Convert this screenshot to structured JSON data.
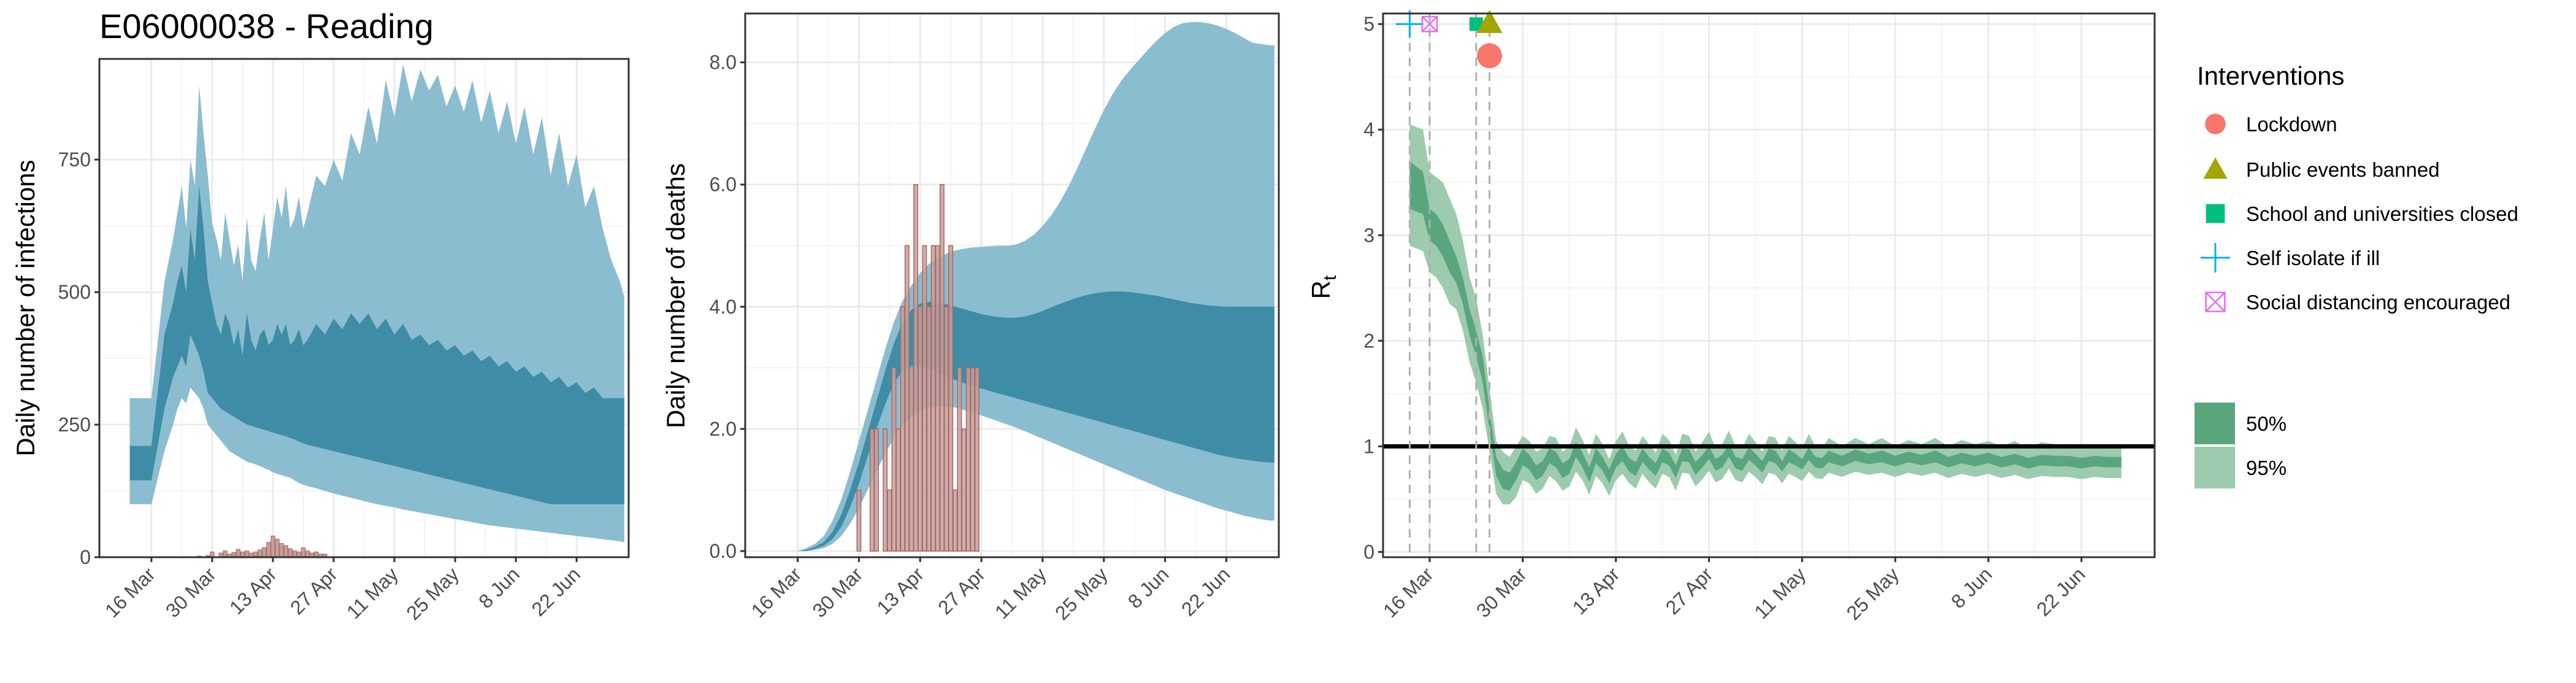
{
  "chart_data": [
    {
      "type": "area",
      "title": "E06000038 - Reading",
      "xlabel": "",
      "ylabel": "Daily number of infections",
      "x_tick_labels": [
        "16 Mar",
        "30 Mar",
        "13 Apr",
        "27 Apr",
        "11 May",
        "25 May",
        "8 Jun",
        "22 Jun"
      ],
      "y_ticks": [
        0,
        250,
        500,
        750
      ],
      "y_tick_labels": [
        "0",
        "250",
        "500",
        "750"
      ],
      "ylim": [
        0,
        940
      ],
      "x_day_range": [
        -12,
        110
      ],
      "band_days": [
        -5,
        0,
        3,
        5,
        6,
        7,
        8,
        9,
        10,
        11,
        12,
        13,
        14,
        15,
        16,
        17,
        18,
        19,
        20,
        21,
        22,
        23,
        24,
        25,
        26,
        27,
        28,
        29,
        30,
        31,
        32,
        33,
        34,
        35,
        36,
        38,
        40,
        42,
        44,
        46,
        48,
        50,
        52,
        54,
        56,
        58,
        60,
        62,
        64,
        66,
        68,
        70,
        72,
        74,
        76,
        78,
        80,
        82,
        84,
        86,
        88,
        90,
        92,
        94,
        96,
        98,
        100,
        102,
        104,
        106,
        108,
        109
      ],
      "band95_upper": [
        300,
        300,
        520,
        600,
        650,
        700,
        620,
        750,
        700,
        890,
        800,
        720,
        630,
        600,
        560,
        650,
        600,
        550,
        590,
        520,
        640,
        560,
        540,
        600,
        650,
        560,
        620,
        680,
        640,
        700,
        620,
        640,
        680,
        620,
        650,
        720,
        700,
        750,
        710,
        800,
        760,
        850,
        780,
        900,
        830,
        930,
        860,
        920,
        880,
        910,
        850,
        890,
        840,
        900,
        820,
        880,
        800,
        860,
        780,
        850,
        760,
        830,
        720,
        800,
        700,
        760,
        660,
        700,
        620,
        560,
        520,
        490
      ],
      "band95_lower": [
        100,
        100,
        200,
        250,
        280,
        300,
        290,
        320,
        310,
        300,
        280,
        250,
        240,
        230,
        220,
        210,
        200,
        195,
        190,
        185,
        180,
        178,
        175,
        172,
        168,
        165,
        160,
        157,
        155,
        152,
        150,
        145,
        140,
        137,
        134,
        130,
        125,
        120,
        116,
        112,
        108,
        104,
        100,
        97,
        94,
        90,
        87,
        84,
        81,
        78,
        75,
        72,
        69,
        66,
        63,
        60,
        58,
        56,
        54,
        52,
        50,
        48,
        46,
        44,
        42,
        40,
        38,
        36,
        34,
        32,
        30,
        28
      ],
      "band50_upper": [
        210,
        210,
        420,
        480,
        520,
        550,
        500,
        620,
        560,
        700,
        620,
        520,
        480,
        440,
        420,
        460,
        440,
        400,
        430,
        380,
        460,
        410,
        390,
        420,
        430,
        400,
        410,
        440,
        420,
        440,
        400,
        410,
        430,
        400,
        410,
        440,
        420,
        450,
        430,
        460,
        440,
        460,
        430,
        450,
        420,
        440,
        410,
        420,
        400,
        410,
        390,
        400,
        380,
        390,
        370,
        380,
        360,
        370,
        350,
        360,
        340,
        350,
        330,
        340,
        320,
        330,
        310,
        320,
        300,
        300,
        300,
        300
      ],
      "band50_lower": [
        145,
        145,
        280,
        340,
        360,
        380,
        360,
        420,
        400,
        380,
        350,
        310,
        300,
        290,
        280,
        275,
        270,
        265,
        260,
        255,
        250,
        248,
        245,
        243,
        240,
        238,
        235,
        233,
        230,
        228,
        225,
        222,
        218,
        215,
        212,
        208,
        204,
        200,
        196,
        192,
        188,
        184,
        180,
        176,
        172,
        168,
        164,
        160,
        156,
        152,
        148,
        144,
        140,
        136,
        132,
        128,
        124,
        120,
        116,
        112,
        108,
        104,
        100,
        100,
        100,
        100,
        100,
        100,
        100,
        100,
        100,
        100
      ],
      "observed_days": [
        11,
        13,
        14,
        16,
        17,
        18,
        19,
        20,
        21,
        22,
        23,
        24,
        25,
        26,
        27,
        28,
        29,
        30,
        31,
        32,
        33,
        34,
        35,
        36,
        37,
        38,
        39,
        40
      ],
      "observed_cases": [
        2,
        3,
        10,
        8,
        12,
        6,
        9,
        15,
        10,
        12,
        8,
        10,
        14,
        18,
        28,
        40,
        34,
        26,
        22,
        16,
        12,
        10,
        18,
        12,
        8,
        10,
        6,
        6
      ]
    },
    {
      "type": "area",
      "title": "",
      "xlabel": "",
      "ylabel": "Daily number of deaths",
      "x_tick_labels": [
        "16 Mar",
        "30 Mar",
        "13 Apr",
        "27 Apr",
        "11 May",
        "25 May",
        "8 Jun",
        "22 Jun"
      ],
      "y_ticks": [
        0,
        2,
        4,
        6,
        8
      ],
      "y_tick_labels": [
        "0.0",
        "2.0",
        "4.0",
        "6.0",
        "8.0"
      ],
      "ylim": [
        -0.1,
        8.8
      ],
      "x_day_range": [
        -12,
        110
      ],
      "band_days": [
        0,
        2,
        4,
        6,
        8,
        10,
        12,
        14,
        16,
        18,
        20,
        22,
        24,
        26,
        28,
        30,
        32,
        34,
        36,
        38,
        40,
        42,
        44,
        46,
        48,
        50,
        52,
        54,
        56,
        58,
        60,
        62,
        64,
        66,
        68,
        70,
        72,
        74,
        76,
        78,
        80,
        82,
        84,
        86,
        88,
        90,
        92,
        94,
        96,
        98,
        100,
        102,
        104,
        106,
        108,
        109
      ],
      "band95_upper": [
        0,
        0.05,
        0.12,
        0.25,
        0.5,
        0.85,
        1.3,
        1.8,
        2.3,
        2.8,
        3.3,
        3.75,
        4.1,
        4.35,
        4.55,
        4.7,
        4.8,
        4.87,
        4.92,
        4.95,
        4.97,
        4.98,
        4.99,
        5.0,
        5.0,
        5.02,
        5.08,
        5.18,
        5.32,
        5.5,
        5.72,
        5.98,
        6.28,
        6.6,
        6.92,
        7.22,
        7.48,
        7.7,
        7.88,
        8.04,
        8.2,
        8.35,
        8.48,
        8.58,
        8.64,
        8.66,
        8.66,
        8.64,
        8.6,
        8.55,
        8.48,
        8.4,
        8.32,
        8.3,
        8.28,
        8.28
      ],
      "band95_lower": [
        0,
        0,
        0.02,
        0.05,
        0.12,
        0.25,
        0.45,
        0.7,
        1.0,
        1.3,
        1.6,
        1.85,
        2.05,
        2.2,
        2.3,
        2.35,
        2.37,
        2.37,
        2.35,
        2.31,
        2.27,
        2.22,
        2.17,
        2.12,
        2.07,
        2.02,
        1.96,
        1.9,
        1.84,
        1.78,
        1.72,
        1.66,
        1.6,
        1.54,
        1.48,
        1.42,
        1.36,
        1.3,
        1.24,
        1.18,
        1.12,
        1.06,
        1.0,
        0.95,
        0.9,
        0.85,
        0.8,
        0.75,
        0.7,
        0.66,
        0.62,
        0.58,
        0.55,
        0.52,
        0.5,
        0.5
      ],
      "band50_upper": [
        0,
        0.02,
        0.07,
        0.15,
        0.32,
        0.6,
        1.0,
        1.45,
        1.95,
        2.45,
        2.95,
        3.4,
        3.75,
        3.95,
        4.05,
        4.08,
        4.07,
        4.04,
        4.0,
        3.96,
        3.92,
        3.88,
        3.85,
        3.83,
        3.82,
        3.82,
        3.84,
        3.88,
        3.93,
        3.99,
        4.05,
        4.1,
        4.15,
        4.19,
        4.22,
        4.24,
        4.25,
        4.25,
        4.24,
        4.22,
        4.2,
        4.18,
        4.15,
        4.12,
        4.09,
        4.06,
        4.04,
        4.02,
        4.01,
        4.0,
        4.0,
        4.0,
        4.0,
        4.0,
        4.0,
        4.0
      ],
      "band50_lower": [
        0,
        0,
        0.04,
        0.09,
        0.2,
        0.4,
        0.72,
        1.1,
        1.55,
        2.0,
        2.4,
        2.75,
        2.95,
        3.03,
        3.03,
        2.98,
        2.92,
        2.86,
        2.8,
        2.75,
        2.7,
        2.66,
        2.62,
        2.58,
        2.54,
        2.5,
        2.46,
        2.42,
        2.38,
        2.34,
        2.3,
        2.26,
        2.22,
        2.18,
        2.14,
        2.1,
        2.06,
        2.02,
        1.98,
        1.94,
        1.9,
        1.86,
        1.82,
        1.78,
        1.74,
        1.7,
        1.66,
        1.62,
        1.58,
        1.55,
        1.52,
        1.5,
        1.48,
        1.46,
        1.45,
        1.45
      ],
      "observed_days": [
        14,
        16,
        17,
        18,
        19,
        20,
        21,
        22,
        23,
        24,
        25,
        26,
        27,
        28,
        29,
        30,
        31,
        32,
        33,
        34,
        35,
        36,
        37,
        38,
        39,
        40,
        41
      ],
      "observed_deaths": [
        1,
        0,
        2,
        2,
        0,
        2,
        1,
        3,
        2,
        4,
        5,
        3,
        6,
        4,
        5,
        4,
        5,
        5,
        6,
        4,
        5,
        1,
        3,
        2,
        3,
        3,
        3
      ]
    },
    {
      "type": "area",
      "title": "",
      "xlabel": "",
      "ylabel": "R",
      "ylabel_subscript": "t",
      "x_tick_labels": [
        "16 Mar",
        "30 Mar",
        "13 Apr",
        "27 Apr",
        "11 May",
        "25 May",
        "8 Jun",
        "22 Jun"
      ],
      "y_ticks": [
        0,
        1,
        2,
        3,
        4,
        5
      ],
      "y_tick_labels": [
        "0",
        "1",
        "2",
        "3",
        "4",
        "5"
      ],
      "ylim": [
        -0.05,
        5.1
      ],
      "x_day_range": [
        -7,
        109
      ],
      "reference_line": 1,
      "legend_title": "Interventions",
      "interventions": [
        {
          "name": "Lockdown",
          "day": 9,
          "marker": "circle",
          "color": "#f8766d"
        },
        {
          "name": "Public events banned",
          "day": 9,
          "marker": "triangle",
          "color": "#a3a500"
        },
        {
          "name": "School and universities closed",
          "day": 7,
          "marker": "square",
          "color": "#00bf7d"
        },
        {
          "name": "Self isolate if ill",
          "day": -3,
          "marker": "plus",
          "color": "#00b0f6"
        },
        {
          "name": "Social distancing encouraged",
          "day": 0,
          "marker": "boxed-x",
          "color": "#e76bf3"
        }
      ],
      "band_labels": [
        "50%",
        "95%"
      ],
      "band_days": [
        -3,
        -1,
        0,
        1,
        2,
        3,
        4,
        5,
        6,
        7,
        8,
        9,
        10,
        11,
        12,
        13,
        14,
        15,
        16,
        17,
        18,
        19,
        20,
        21,
        22,
        23,
        24,
        25,
        26,
        27,
        28,
        29,
        30,
        31,
        32,
        33,
        34,
        35,
        36,
        37,
        38,
        39,
        40,
        41,
        42,
        43,
        44,
        45,
        46,
        47,
        48,
        49,
        50,
        51,
        52,
        53,
        54,
        55,
        56,
        57,
        58,
        59,
        60,
        62,
        64,
        66,
        68,
        70,
        72,
        74,
        76,
        78,
        80,
        82,
        84,
        86,
        88,
        90,
        92,
        94,
        96,
        98,
        100,
        102,
        104
      ],
      "ci95_upper": [
        4.05,
        4.0,
        3.6,
        3.55,
        3.5,
        3.35,
        3.2,
        2.95,
        2.6,
        2.4,
        2.05,
        1.55,
        1.05,
        0.95,
        0.9,
        1.0,
        1.1,
        1.05,
        0.95,
        0.98,
        1.1,
        1.08,
        0.95,
        1.0,
        1.18,
        1.06,
        0.92,
        1.12,
        1.02,
        0.88,
        1.05,
        1.14,
        1.0,
        0.96,
        1.1,
        1.02,
        0.94,
        1.12,
        1.06,
        0.92,
        1.12,
        1.1,
        0.95,
        1.04,
        1.14,
        0.98,
        1.02,
        1.15,
        1.0,
        0.98,
        1.12,
        1.04,
        0.95,
        1.1,
        1.08,
        0.96,
        1.1,
        1.04,
        0.98,
        1.12,
        1.0,
        0.98,
        1.08,
        1.0,
        1.08,
        1.02,
        1.08,
        1.0,
        1.06,
        1.02,
        1.08,
        1.0,
        1.06,
        1.02,
        1.05,
        1.0,
        1.05,
        0.98,
        1.04,
        1.02,
        1.02,
        0.98,
        1.02,
        1.0,
        1.0
      ],
      "ci50_upper": [
        3.7,
        3.6,
        3.25,
        3.2,
        3.1,
        2.95,
        2.8,
        2.6,
        2.3,
        2.1,
        1.85,
        1.35,
        0.9,
        0.78,
        0.75,
        0.85,
        0.98,
        0.92,
        0.82,
        0.86,
        0.98,
        0.95,
        0.84,
        0.88,
        1.04,
        0.94,
        0.8,
        0.98,
        0.9,
        0.78,
        0.93,
        1.0,
        0.89,
        0.85,
        0.98,
        0.9,
        0.84,
        0.98,
        0.94,
        0.82,
        0.98,
        0.97,
        0.85,
        0.92,
        1.0,
        0.88,
        0.92,
        1.02,
        0.9,
        0.88,
        0.99,
        0.93,
        0.86,
        0.98,
        0.96,
        0.86,
        0.97,
        0.93,
        0.88,
        0.99,
        0.9,
        0.89,
        0.96,
        0.91,
        0.97,
        0.93,
        0.96,
        0.91,
        0.95,
        0.92,
        0.96,
        0.9,
        0.94,
        0.91,
        0.94,
        0.9,
        0.93,
        0.89,
        0.92,
        0.91,
        0.91,
        0.89,
        0.91,
        0.9,
        0.9
      ],
      "ci50_lower": [
        3.25,
        3.2,
        2.95,
        2.9,
        2.8,
        2.65,
        2.55,
        2.35,
        2.05,
        1.85,
        1.6,
        1.15,
        0.72,
        0.6,
        0.58,
        0.68,
        0.82,
        0.78,
        0.68,
        0.72,
        0.84,
        0.8,
        0.7,
        0.74,
        0.9,
        0.8,
        0.66,
        0.84,
        0.77,
        0.65,
        0.8,
        0.86,
        0.76,
        0.72,
        0.85,
        0.78,
        0.72,
        0.85,
        0.82,
        0.7,
        0.86,
        0.85,
        0.73,
        0.8,
        0.88,
        0.77,
        0.8,
        0.9,
        0.79,
        0.77,
        0.87,
        0.82,
        0.75,
        0.86,
        0.84,
        0.76,
        0.85,
        0.82,
        0.78,
        0.87,
        0.8,
        0.79,
        0.85,
        0.81,
        0.86,
        0.83,
        0.85,
        0.81,
        0.85,
        0.82,
        0.85,
        0.8,
        0.84,
        0.81,
        0.84,
        0.8,
        0.83,
        0.79,
        0.82,
        0.81,
        0.81,
        0.79,
        0.81,
        0.8,
        0.8
      ],
      "ci95_lower": [
        2.9,
        2.85,
        2.65,
        2.6,
        2.5,
        2.35,
        2.3,
        2.1,
        1.8,
        1.6,
        1.35,
        0.95,
        0.55,
        0.45,
        0.45,
        0.52,
        0.68,
        0.65,
        0.55,
        0.6,
        0.72,
        0.67,
        0.58,
        0.62,
        0.76,
        0.68,
        0.54,
        0.72,
        0.65,
        0.53,
        0.68,
        0.74,
        0.65,
        0.6,
        0.74,
        0.66,
        0.6,
        0.74,
        0.71,
        0.58,
        0.75,
        0.74,
        0.62,
        0.69,
        0.77,
        0.66,
        0.69,
        0.79,
        0.68,
        0.66,
        0.76,
        0.71,
        0.64,
        0.75,
        0.73,
        0.65,
        0.74,
        0.71,
        0.67,
        0.76,
        0.7,
        0.69,
        0.75,
        0.71,
        0.76,
        0.73,
        0.75,
        0.71,
        0.75,
        0.72,
        0.75,
        0.7,
        0.74,
        0.71,
        0.74,
        0.7,
        0.73,
        0.69,
        0.72,
        0.71,
        0.71,
        0.69,
        0.71,
        0.7,
        0.7
      ]
    }
  ],
  "colors": {
    "band95_blue": "#8bbdd0",
    "band50_blue": "#3f8ca7",
    "bar_fill": "#c79d9a",
    "bar_stroke": "#a66a65",
    "band95_green": "#9ccbae",
    "band50_green": "#5aa67c",
    "grid_major": "#ebebeb",
    "grid_minor": "#f4f4f4",
    "panel_border": "#333333",
    "vline": "#b0b0b0"
  }
}
